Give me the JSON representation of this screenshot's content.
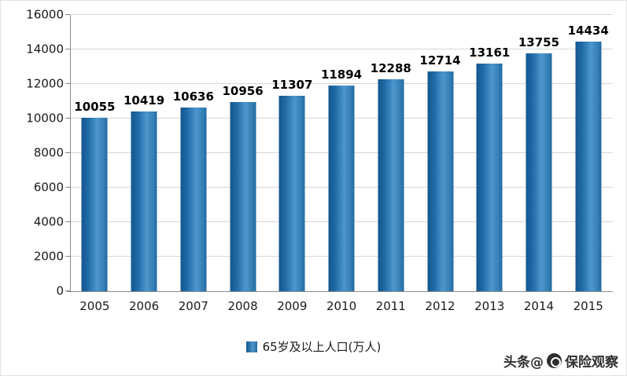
{
  "chart_data": {
    "type": "bar",
    "title": "",
    "categories": [
      "2005",
      "2006",
      "2007",
      "2008",
      "2009",
      "2010",
      "2011",
      "2012",
      "2013",
      "2014",
      "2015"
    ],
    "values": [
      10055,
      10419,
      10636,
      10956,
      11307,
      11894,
      12288,
      12714,
      13161,
      13755,
      14434
    ],
    "series_name": "65岁及以上人口(万人)",
    "xlabel": "",
    "ylabel": "",
    "ylim": [
      0,
      16000
    ],
    "ytick_step": 2000,
    "ytick_labels": [
      "0",
      "2000",
      "4000",
      "6000",
      "8000",
      "10000",
      "12000",
      "14000",
      "16000"
    ],
    "grid": true,
    "data_labels": true,
    "legend_position": "bottom"
  },
  "legend": {
    "items": [
      {
        "label": "65岁及以上人口(万人)",
        "color": "#2E75B6"
      }
    ]
  },
  "watermark": {
    "prefix": "头条@",
    "suffix": "保险观察"
  },
  "colors": {
    "bar_dark": "#14568C",
    "bar_light": "#4E97CD",
    "gridline": "#D6D6D6",
    "axis": "#898989",
    "text": "#1A1A1A"
  }
}
